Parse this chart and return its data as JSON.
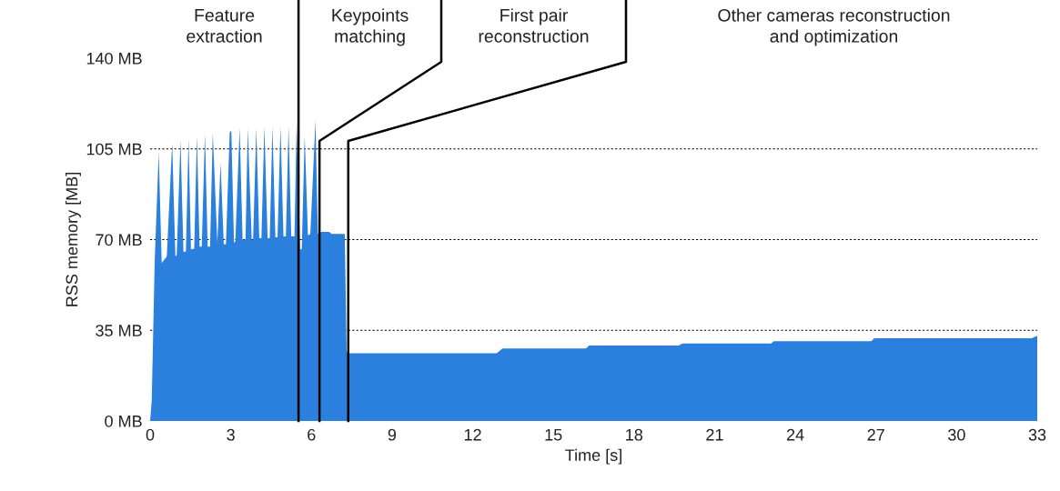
{
  "chart_data": {
    "type": "area",
    "xlabel": "Time [s]",
    "ylabel": "RSS memory [MB]",
    "x": [
      0,
      0.06,
      0.17,
      0.32,
      0.43,
      0.62,
      0.82,
      0.94,
      0.99,
      1.13,
      1.24,
      1.33,
      1.43,
      1.52,
      1.64,
      1.74,
      1.84,
      1.92,
      2.04,
      2.14,
      2.23,
      2.33,
      2.5,
      2.62,
      2.74,
      2.82,
      2.96,
      3.02,
      3.12,
      3.17,
      3.33,
      3.44,
      3.55,
      3.63,
      3.78,
      3.83,
      3.95,
      4.06,
      4.14,
      4.25,
      4.37,
      4.45,
      4.55,
      4.66,
      4.74,
      4.85,
      4.96,
      5.05,
      5.15,
      5.25,
      5.37,
      5.45,
      5.58,
      5.64,
      5.75,
      5.87,
      5.96,
      6.15,
      6.24,
      6.37,
      6.66,
      6.75,
      7.24,
      7.31,
      7.42,
      12.89,
      13.11,
      16.21,
      16.33,
      19.66,
      19.8,
      23.1,
      23.2,
      26.82,
      26.94,
      32.79,
      32.96,
      33
    ],
    "series": [
      {
        "color": "#2a80dc",
        "values": [
          0,
          8,
          61.7,
          103.7,
          61,
          63.5,
          107.2,
          63.5,
          64,
          108.4,
          65.2,
          65.4,
          109,
          66.2,
          66.5,
          110.1,
          67.3,
          67.3,
          111,
          67.3,
          67.3,
          111.3,
          68.7,
          99.6,
          68.2,
          68.2,
          111.3,
          112.1,
          68.7,
          69.3,
          113,
          69.9,
          69.9,
          113,
          69.9,
          69.9,
          113,
          70.5,
          70.5,
          113.6,
          70.5,
          70.5,
          113.6,
          70.9,
          70.9,
          113.6,
          71.2,
          71.2,
          113.6,
          71.2,
          71.2,
          114.8,
          66.2,
          66.2,
          110.1,
          71.6,
          72.2,
          116,
          72.2,
          73,
          73,
          72.2,
          72.2,
          26.7,
          26.1,
          26.1,
          28,
          28,
          29.1,
          29.1,
          29.9,
          29.9,
          30.8,
          30.8,
          31.9,
          31.9,
          32.7,
          32.7
        ]
      }
    ],
    "xlim": [
      0,
      33
    ],
    "xticks": [
      0,
      3,
      6,
      9,
      12,
      15,
      18,
      21,
      24,
      27,
      30,
      33
    ],
    "ylim": [
      0,
      140
    ],
    "yticks": [
      {
        "value": 0,
        "label": "0 MB"
      },
      {
        "value": 35,
        "label": "35 MB"
      },
      {
        "value": 70,
        "label": "70 MB"
      },
      {
        "value": 105,
        "label": "105 MB"
      },
      {
        "value": 140,
        "label": "140 MB"
      }
    ],
    "grid": "y",
    "ref_lines": [
      {
        "axis": "x",
        "value": 5.52,
        "color": "#000000"
      },
      {
        "axis": "x",
        "value": 6.3,
        "color": "#000000"
      },
      {
        "axis": "x",
        "value": 7.37,
        "color": "#000000"
      }
    ],
    "annotations": [
      "Feature\nextraction",
      "Keypoints\nmatching",
      "First pair\nreconstruction",
      "Other cameras reconstruction\nand optimization"
    ]
  }
}
